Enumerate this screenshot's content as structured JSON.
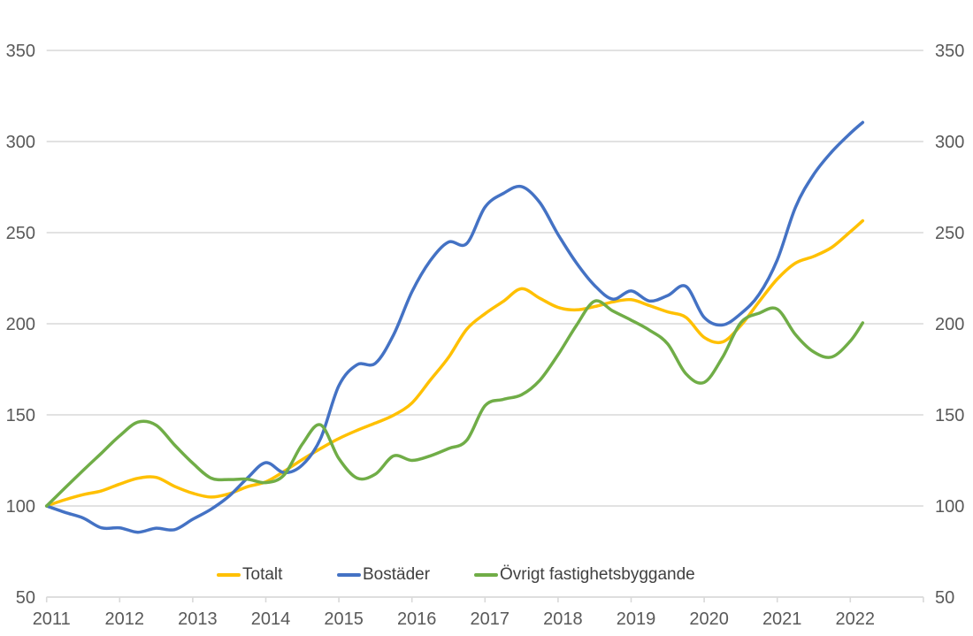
{
  "chart_data": {
    "type": "line",
    "title": "",
    "xlabel": "",
    "ylabel": "",
    "x_unit": "year (quarterly samples)",
    "x": [
      2011.0,
      2011.25,
      2011.5,
      2011.75,
      2012.0,
      2012.25,
      2012.5,
      2012.75,
      2013.0,
      2013.25,
      2013.5,
      2013.75,
      2014.0,
      2014.25,
      2014.5,
      2014.75,
      2015.0,
      2015.25,
      2015.5,
      2015.75,
      2016.0,
      2016.25,
      2016.5,
      2016.75,
      2017.0,
      2017.25,
      2017.5,
      2017.75,
      2018.0,
      2018.25,
      2018.5,
      2018.75,
      2019.0,
      2019.25,
      2019.5,
      2019.75,
      2020.0,
      2020.25,
      2020.5,
      2020.75,
      2021.0,
      2021.25,
      2021.5,
      2021.75,
      2022.0,
      2022.17
    ],
    "series": [
      {
        "name": "Totalt",
        "color": "#FFC000",
        "values": [
          100,
          103.4,
          106.2,
          108.3,
          112,
          115.2,
          115.7,
          110.8,
          107,
          104.9,
          106.7,
          110.6,
          113.2,
          119,
          125.5,
          131.5,
          137,
          141.5,
          145.5,
          149.8,
          156.5,
          169,
          181.5,
          197,
          205.5,
          212.3,
          219.2,
          214,
          209,
          207.6,
          209.4,
          212,
          213.2,
          210,
          206.5,
          203.5,
          192.5,
          190,
          199,
          212,
          224.5,
          233.3,
          237,
          242,
          250.5,
          256.5
        ]
      },
      {
        "name": "Bostäder",
        "color": "#4472C4",
        "values": [
          100,
          96.5,
          93.4,
          88,
          88,
          85.6,
          87.8,
          87,
          92.7,
          98.2,
          105.5,
          115.4,
          123.8,
          118.3,
          122.5,
          137,
          166,
          177.5,
          178.3,
          194,
          217.5,
          234.5,
          244.8,
          244,
          264,
          271.5,
          275.3,
          266.5,
          249,
          233.5,
          221,
          213.5,
          218,
          212.5,
          215.5,
          220.5,
          203.5,
          199.3,
          205.5,
          216,
          235,
          264,
          282,
          294.5,
          304.5,
          310.5
        ]
      },
      {
        "name": "Övrigt fastighetsbyggande",
        "color": "#70AD47",
        "values": [
          100,
          109.8,
          119.5,
          129,
          138.5,
          146,
          144.3,
          133.5,
          123.5,
          115.3,
          114.5,
          114.7,
          112.8,
          117,
          134,
          144.5,
          126,
          115.3,
          117.5,
          127.5,
          125,
          127.5,
          131.5,
          136,
          155,
          158.5,
          161,
          169,
          183,
          199,
          212.4,
          207,
          202,
          196.5,
          189,
          172.5,
          167.8,
          181.5,
          200.5,
          205.8,
          208,
          194,
          184.5,
          181.8,
          190.5,
          200.5
        ]
      }
    ],
    "ylim": [
      50,
      350
    ],
    "yticks": [
      50,
      100,
      150,
      200,
      250,
      300,
      350
    ],
    "xticks": [
      2011,
      2012,
      2013,
      2014,
      2015,
      2016,
      2017,
      2018,
      2019,
      2020,
      2021,
      2022
    ],
    "x_axis_end": 2023,
    "grid": "horizontal",
    "legend_position": "bottom",
    "y_axis_sides": "both",
    "colors": {
      "gridline": "#D9D9D9",
      "axis_line": "#D9D9D9",
      "tick_label": "#595959",
      "legend_text": "#404040",
      "background": "#FFFFFF"
    },
    "line_width": 3.5,
    "smooth": true
  }
}
